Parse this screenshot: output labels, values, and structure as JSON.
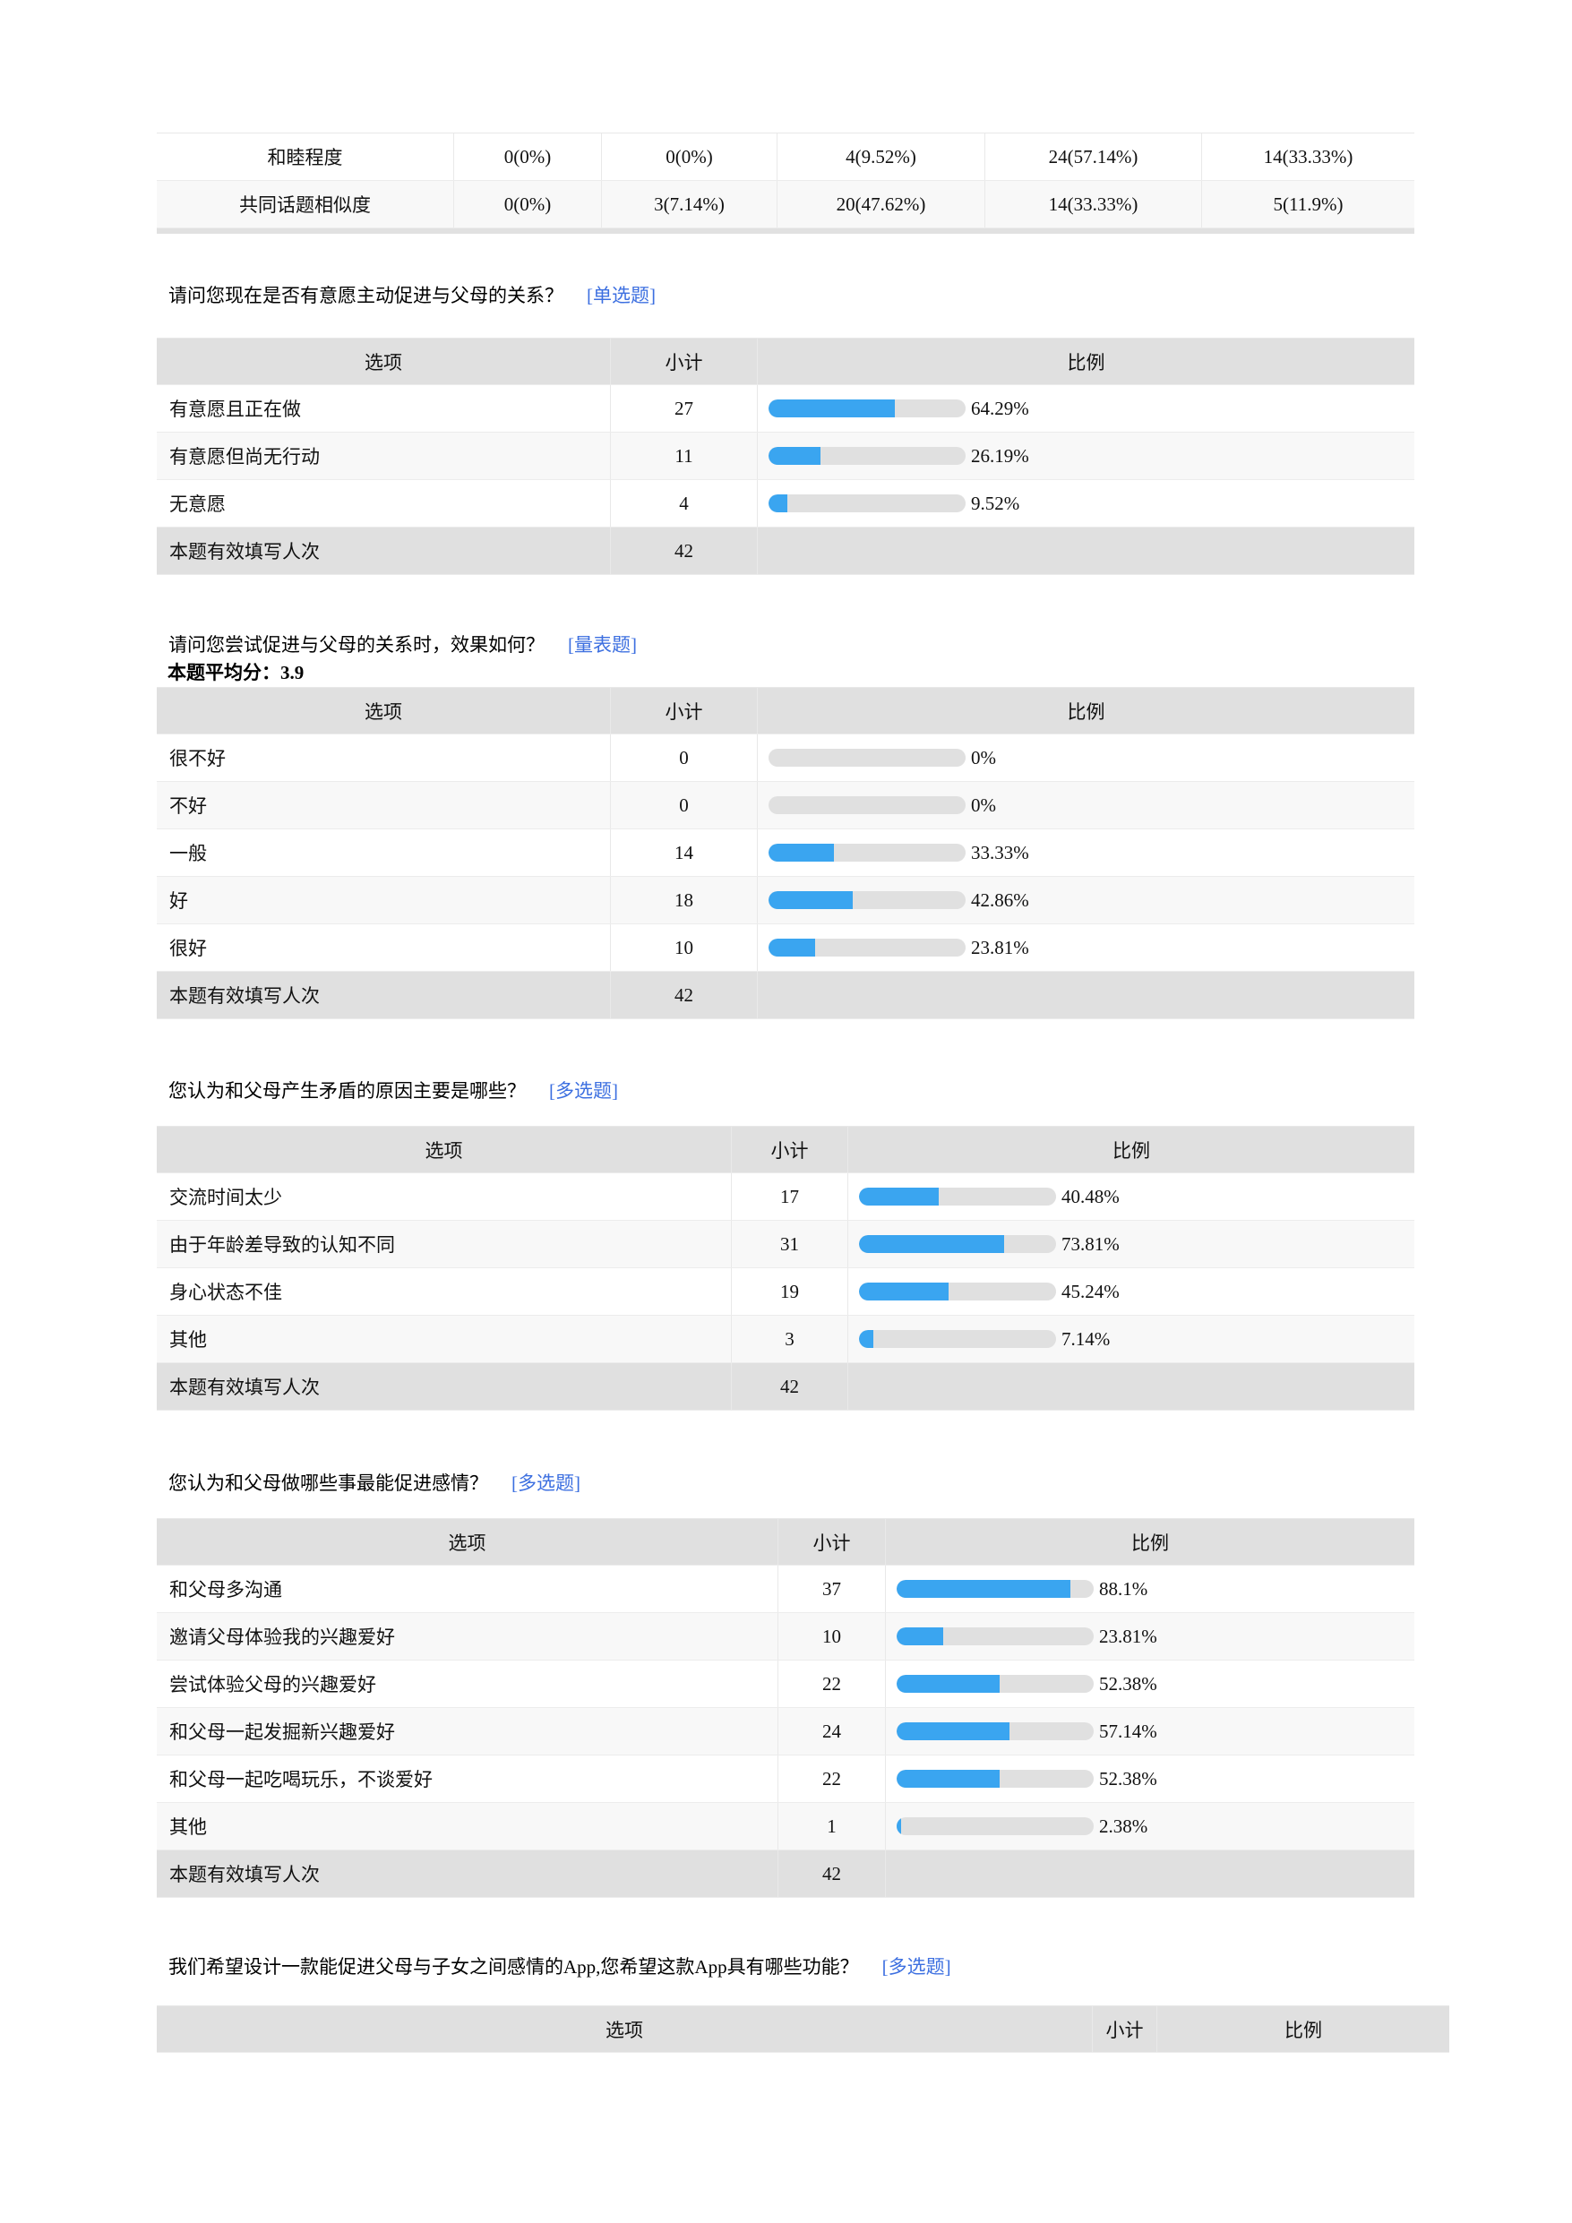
{
  "colors": {
    "link_blue": "#3c6fe0",
    "bar_fill_blue": "#3aa5f0",
    "bar_track_gray": "#e0e0e0",
    "header_bg": "#e0e0e0",
    "footer_bg": "#e0e0e0",
    "alt_row_bg": "#f8f8f8",
    "text": "#000000"
  },
  "headers": {
    "option": "选项",
    "count": "小计",
    "ratio": "比例"
  },
  "matrix_tail": {
    "rows": [
      {
        "label": "和睦程度",
        "cells": [
          "0(0%)",
          "0(0%)",
          "4(9.52%)",
          "24(57.14%)",
          "14(33.33%)"
        ]
      },
      {
        "label": "共同话题相似度",
        "cells": [
          "0(0%)",
          "3(7.14%)",
          "20(47.62%)",
          "14(33.33%)",
          "5(11.9%)"
        ]
      }
    ]
  },
  "questions": [
    {
      "title": "请问您现在是否有意愿主动促进与父母的关系？",
      "tag": "[单选题]",
      "rows": [
        {
          "option": "有意愿且正在做",
          "count": "27",
          "pct": 64.29,
          "pct_label": "64.29%"
        },
        {
          "option": "有意愿但尚无行动",
          "count": "11",
          "pct": 26.19,
          "pct_label": "26.19%"
        },
        {
          "option": "无意愿",
          "count": "4",
          "pct": 9.52,
          "pct_label": "9.52%"
        }
      ],
      "footer_label": "本题有效填写人次",
      "total": "42"
    },
    {
      "title": "请问您尝试促进与父母的关系时，效果如何？",
      "tag": "[量表题]",
      "avg_label": "本题平均分：3.9",
      "rows": [
        {
          "option": "很不好",
          "count": "0",
          "pct": 0,
          "pct_label": "0%"
        },
        {
          "option": "不好",
          "count": "0",
          "pct": 0,
          "pct_label": "0%"
        },
        {
          "option": "一般",
          "count": "14",
          "pct": 33.33,
          "pct_label": "33.33%"
        },
        {
          "option": "好",
          "count": "18",
          "pct": 42.86,
          "pct_label": "42.86%"
        },
        {
          "option": "很好",
          "count": "10",
          "pct": 23.81,
          "pct_label": "23.81%"
        }
      ],
      "footer_label": "本题有效填写人次",
      "total": "42"
    },
    {
      "title": "您认为和父母产生矛盾的原因主要是哪些？",
      "tag": "[多选题]",
      "rows": [
        {
          "option": "交流时间太少",
          "count": "17",
          "pct": 40.48,
          "pct_label": "40.48%"
        },
        {
          "option": "由于年龄差导致的认知不同",
          "count": "31",
          "pct": 73.81,
          "pct_label": "73.81%"
        },
        {
          "option": "身心状态不佳",
          "count": "19",
          "pct": 45.24,
          "pct_label": "45.24%"
        },
        {
          "option": "其他",
          "count": "3",
          "pct": 7.14,
          "pct_label": "7.14%"
        }
      ],
      "footer_label": "本题有效填写人次",
      "total": "42"
    },
    {
      "title": "您认为和父母做哪些事最能促进感情？",
      "tag": "[多选题]",
      "rows": [
        {
          "option": "和父母多沟通",
          "count": "37",
          "pct": 88.1,
          "pct_label": "88.1%"
        },
        {
          "option": "邀请父母体验我的兴趣爱好",
          "count": "10",
          "pct": 23.81,
          "pct_label": "23.81%"
        },
        {
          "option": "尝试体验父母的兴趣爱好",
          "count": "22",
          "pct": 52.38,
          "pct_label": "52.38%"
        },
        {
          "option": "和父母一起发掘新兴趣爱好",
          "count": "24",
          "pct": 57.14,
          "pct_label": "57.14%"
        },
        {
          "option": "和父母一起吃喝玩乐，不谈爱好",
          "count": "22",
          "pct": 52.38,
          "pct_label": "52.38%"
        },
        {
          "option": "其他",
          "count": "1",
          "pct": 2.38,
          "pct_label": "2.38%"
        }
      ],
      "footer_label": "本题有效填写人次",
      "total": "42"
    },
    {
      "title": "我们希望设计一款能促进父母与子女之间感情的App,您希望这款App具有哪些功能？",
      "tag": "[多选题]",
      "header_only": true,
      "rows": []
    }
  ]
}
